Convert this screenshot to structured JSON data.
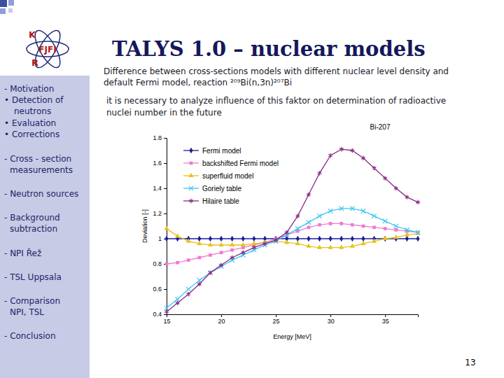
{
  "slide": {
    "title": "TALYS 1.0 – nuclear models",
    "logo": [
      "K",
      "FJFI",
      "R"
    ],
    "sidebar": [
      [
        "- Motivation"
      ],
      [
        "• Detection of",
        "neutrons"
      ],
      [
        "• Evaluation"
      ],
      [
        "• Corrections"
      ],
      [
        "- Cross - section",
        "measurements"
      ],
      [
        "- Neutron sources"
      ],
      [
        "- Background",
        "subtraction"
      ],
      [
        "- NPI Řež"
      ],
      [
        "- TSL Uppsala"
      ],
      [
        "- Comparison",
        "NPI, TSL"
      ],
      [
        "- Conclusion"
      ]
    ],
    "caption": [
      "Difference between cross-sections models with different nuclear level density and",
      "default Fermi model, reaction ²⁰⁹Bi(n,3n)²⁰⁷Bi"
    ],
    "note": [
      "it is necessary to analyze influence of this faktor on determination of radioactive",
      "nuclei number in the future"
    ],
    "page": 13
  },
  "chart_data": {
    "type": "line",
    "title": "Bi-207",
    "x_label": "Energy [MeV]",
    "y_label": "Deviation [-]",
    "x": [
      15,
      16,
      17,
      18,
      19,
      20,
      21,
      22,
      23,
      24,
      25,
      26,
      27,
      28,
      29,
      30,
      31,
      32,
      33,
      34,
      35,
      36,
      37,
      38
    ],
    "series": [
      {
        "name": "Fermi model",
        "color": "#1c1c9c",
        "marker": "diamond",
        "values": [
          1,
          1,
          1,
          1,
          1,
          1,
          1,
          1,
          1,
          1,
          1,
          1,
          1,
          1,
          1,
          1,
          1,
          1,
          1,
          1,
          1,
          1,
          1,
          1
        ]
      },
      {
        "name": "backshifted Fermi model",
        "color": "#f07ad0",
        "marker": "square",
        "values": [
          0.8,
          0.81,
          0.83,
          0.85,
          0.87,
          0.89,
          0.91,
          0.93,
          0.95,
          0.97,
          1.0,
          1.03,
          1.06,
          1.09,
          1.11,
          1.12,
          1.12,
          1.11,
          1.1,
          1.09,
          1.08,
          1.07,
          1.06,
          1.05
        ]
      },
      {
        "name": "superfluid model",
        "color": "#e8c21a",
        "marker": "triangle",
        "values": [
          1.08,
          1.02,
          0.98,
          0.96,
          0.95,
          0.95,
          0.95,
          0.95,
          0.96,
          0.97,
          0.98,
          0.97,
          0.96,
          0.94,
          0.93,
          0.93,
          0.93,
          0.94,
          0.96,
          0.98,
          1.0,
          1.01,
          1.03,
          1.04
        ]
      },
      {
        "name": "Goriely table",
        "color": "#3cc8f0",
        "marker": "x",
        "values": [
          0.45,
          0.52,
          0.6,
          0.67,
          0.73,
          0.78,
          0.83,
          0.87,
          0.91,
          0.95,
          0.98,
          1.03,
          1.08,
          1.13,
          1.18,
          1.22,
          1.24,
          1.24,
          1.22,
          1.18,
          1.14,
          1.1,
          1.07,
          1.05
        ]
      },
      {
        "name": "Hilaire table",
        "color": "#8a2a86",
        "marker": "asterisk",
        "values": [
          0.42,
          0.49,
          0.56,
          0.64,
          0.73,
          0.79,
          0.85,
          0.89,
          0.93,
          0.96,
          0.99,
          1.05,
          1.18,
          1.35,
          1.52,
          1.66,
          1.71,
          1.7,
          1.64,
          1.56,
          1.48,
          1.4,
          1.33,
          1.29
        ]
      }
    ],
    "xlim": [
      15,
      38
    ],
    "xticks": [
      15,
      20,
      25,
      30,
      35
    ],
    "ylim": [
      0.4,
      1.8
    ],
    "yticks": [
      0.4,
      0.6,
      0.8,
      1,
      1.2,
      1.4,
      1.6,
      1.8
    ],
    "grid": false,
    "legend": "top-left"
  }
}
